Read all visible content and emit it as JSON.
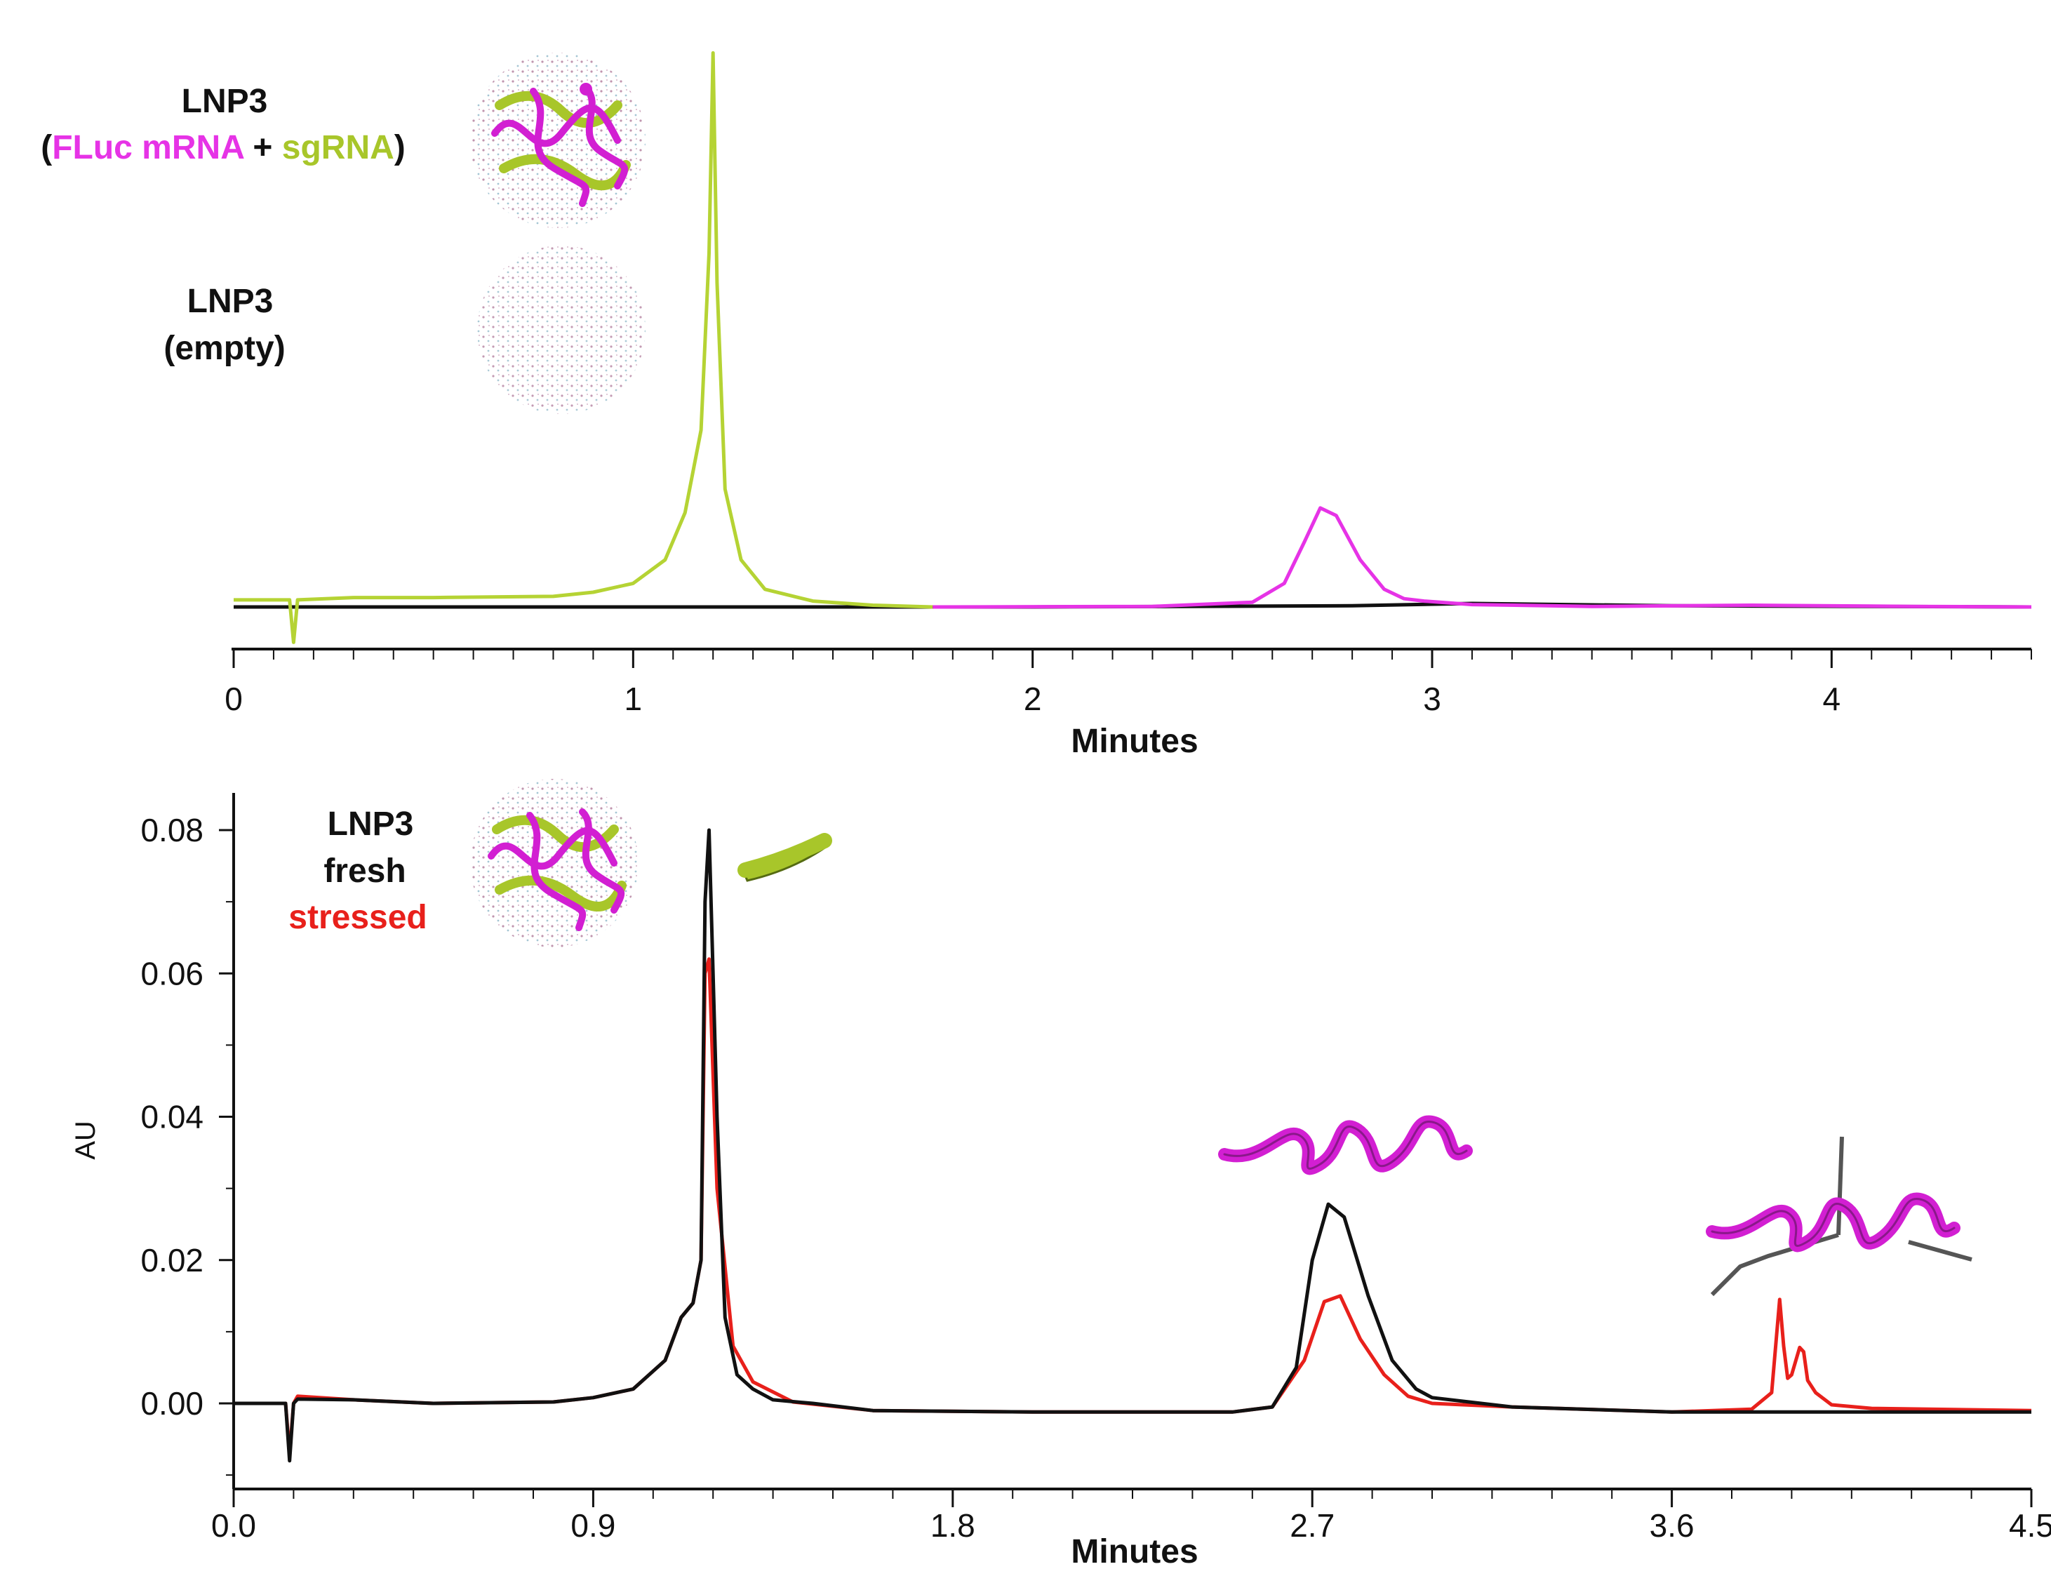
{
  "chart_data": [
    {
      "panel": "top",
      "type": "line",
      "xlabel": "Minutes",
      "ylabel": "",
      "xlim": [
        0,
        4.5
      ],
      "xticks": [
        "0",
        "1",
        "2",
        "3",
        "4"
      ],
      "legend": {
        "sample1_title": "LNP3",
        "sample1_open": "(",
        "sample1_mrna": "FLuc mRNA",
        "sample1_plus": " + ",
        "sample1_sgrna": "sgRNA",
        "sample1_close": ")",
        "sample2_title": "LNP3",
        "sample2_sub": "(empty)",
        "placement": "top-left"
      },
      "series": [
        {
          "name": "LNP3 (FLuc mRNA + sgRNA) - sgRNA region",
          "color": "#b5d334",
          "x": [
            0,
            0.14,
            0.15,
            0.16,
            0.3,
            0.5,
            0.8,
            0.9,
            1.0,
            1.08,
            1.13,
            1.17,
            1.19,
            1.2,
            1.21,
            1.23,
            1.27,
            1.33,
            1.45,
            1.6,
            1.75
          ],
          "y": [
            0.0012,
            0.0012,
            -0.006,
            0.0012,
            0.0016,
            0.0016,
            0.0018,
            0.0025,
            0.004,
            0.008,
            0.016,
            0.03,
            0.06,
            0.094,
            0.055,
            0.02,
            0.008,
            0.003,
            0.001,
            0.0003,
            0.0
          ]
        },
        {
          "name": "LNP3 (FLuc mRNA + sgRNA) - mRNA region",
          "color": "#e633e6",
          "x": [
            1.75,
            2.3,
            2.55,
            2.63,
            2.68,
            2.72,
            2.76,
            2.82,
            2.88,
            2.93,
            2.98,
            3.1,
            3.4,
            3.8,
            4.2,
            4.5
          ],
          "y": [
            0.0,
            0.0001,
            0.0008,
            0.004,
            0.011,
            0.0168,
            0.0155,
            0.008,
            0.003,
            0.0014,
            0.001,
            0.0004,
            0.0001,
            0.0003,
            0.0001,
            0.0
          ]
        },
        {
          "name": "LNP3 (empty)",
          "color": "#111111",
          "x": [
            0,
            0.15,
            1.0,
            2.0,
            2.8,
            3.1,
            3.6,
            4.5
          ],
          "y": [
            0.0,
            0.0,
            0.0,
            0.0,
            0.0002,
            0.0006,
            0.0002,
            0.0
          ]
        }
      ]
    },
    {
      "panel": "bottom",
      "type": "line",
      "xlabel": "Minutes",
      "ylabel": "AU",
      "xlim": [
        0.0,
        4.5
      ],
      "ylim": [
        -0.012,
        0.085
      ],
      "xticks": [
        "0.0",
        "0.9",
        "1.8",
        "2.7",
        "3.6",
        "4.5"
      ],
      "yticks": [
        "0.00",
        "0.02",
        "0.04",
        "0.06",
        "0.08"
      ],
      "legend": {
        "title": "LNP3",
        "fresh": "fresh",
        "stressed": "stressed",
        "placement": "top-left"
      },
      "series": [
        {
          "name": "stressed",
          "color": "#e8201b",
          "x": [
            0,
            0.13,
            0.14,
            0.15,
            0.16,
            0.3,
            0.5,
            0.8,
            0.9,
            1.0,
            1.08,
            1.12,
            1.15,
            1.17,
            1.18,
            1.19,
            1.21,
            1.25,
            1.3,
            1.4,
            1.6,
            2.0,
            2.5,
            2.6,
            2.68,
            2.73,
            2.77,
            2.82,
            2.88,
            2.94,
            3.0,
            3.2,
            3.6,
            3.8,
            3.85,
            3.87,
            3.88,
            3.89,
            3.9,
            3.92,
            3.93,
            3.94,
            3.96,
            4.0,
            4.1,
            4.5
          ],
          "y": [
            0.0,
            0.0,
            -0.007,
            0.0,
            0.001,
            0.0005,
            0.0,
            0.0002,
            0.0008,
            0.002,
            0.006,
            0.012,
            0.014,
            0.02,
            0.06,
            0.062,
            0.03,
            0.008,
            0.003,
            0.0002,
            -0.001,
            -0.0012,
            -0.0012,
            -0.0005,
            0.006,
            0.0142,
            0.015,
            0.009,
            0.004,
            0.001,
            0.0,
            -0.0005,
            -0.0012,
            -0.0008,
            0.0015,
            0.0145,
            0.008,
            0.0035,
            0.004,
            0.0078,
            0.0072,
            0.0032,
            0.0015,
            -0.0002,
            -0.0007,
            -0.001
          ]
        },
        {
          "name": "fresh",
          "color": "#111111",
          "x": [
            0,
            0.13,
            0.14,
            0.15,
            0.16,
            0.3,
            0.5,
            0.8,
            0.9,
            1.0,
            1.08,
            1.12,
            1.15,
            1.17,
            1.18,
            1.19,
            1.21,
            1.23,
            1.26,
            1.3,
            1.35,
            1.45,
            1.6,
            2.0,
            2.5,
            2.6,
            2.66,
            2.7,
            2.74,
            2.78,
            2.84,
            2.9,
            2.96,
            3.0,
            3.2,
            3.6,
            4.0,
            4.5
          ],
          "y": [
            0.0,
            0.0,
            -0.008,
            0.0,
            0.0006,
            0.0005,
            0.0,
            0.0002,
            0.0008,
            0.002,
            0.006,
            0.012,
            0.014,
            0.02,
            0.07,
            0.08,
            0.04,
            0.012,
            0.004,
            0.002,
            0.0005,
            0.0,
            -0.001,
            -0.0012,
            -0.0012,
            -0.0005,
            0.005,
            0.02,
            0.0278,
            0.026,
            0.015,
            0.006,
            0.002,
            0.0008,
            -0.0005,
            -0.0012,
            -0.0012,
            -0.0012
          ]
        }
      ]
    }
  ]
}
